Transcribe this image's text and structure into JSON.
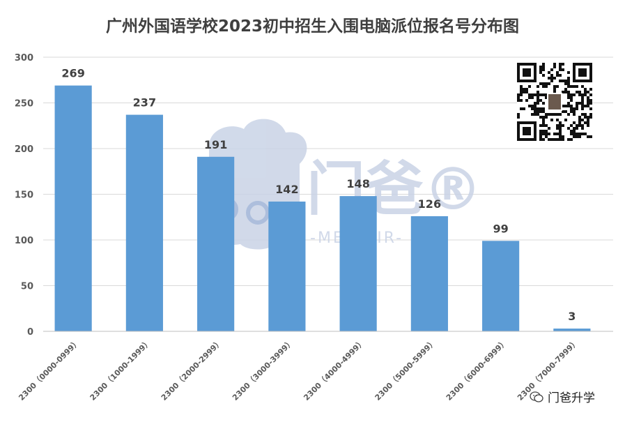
{
  "title": "广州外国语学校2023初中招生入围电脑派位报名号分布图",
  "watermark": {
    "brand": "门爸®",
    "sub": "-MEN SIR-"
  },
  "footer_brand": "门爸升学",
  "colors": {
    "bar": "#5b9bd5",
    "grid": "#d9d9d9",
    "axis_text": "#595959",
    "label": "#404040",
    "watermark": "#c9d3e6"
  },
  "chart_data": {
    "type": "bar",
    "title": "广州外国语学校2023初中招生入围电脑派位报名号分布图",
    "categories": [
      "2300（0000-0999）",
      "2300（1000-1999）",
      "2300（2000-2999）",
      "2300（3000-3999）",
      "2300（4000-4999）",
      "2300（5000-5999）",
      "2300（6000-6999）",
      "2300（7000-7999）"
    ],
    "values": [
      269,
      237,
      191,
      142,
      148,
      126,
      99,
      3
    ],
    "ylim": [
      0,
      300
    ],
    "yticks": [
      0,
      50,
      100,
      150,
      200,
      250,
      300
    ],
    "xlabel": "",
    "ylabel": "",
    "grid": true,
    "data_labels": true
  }
}
